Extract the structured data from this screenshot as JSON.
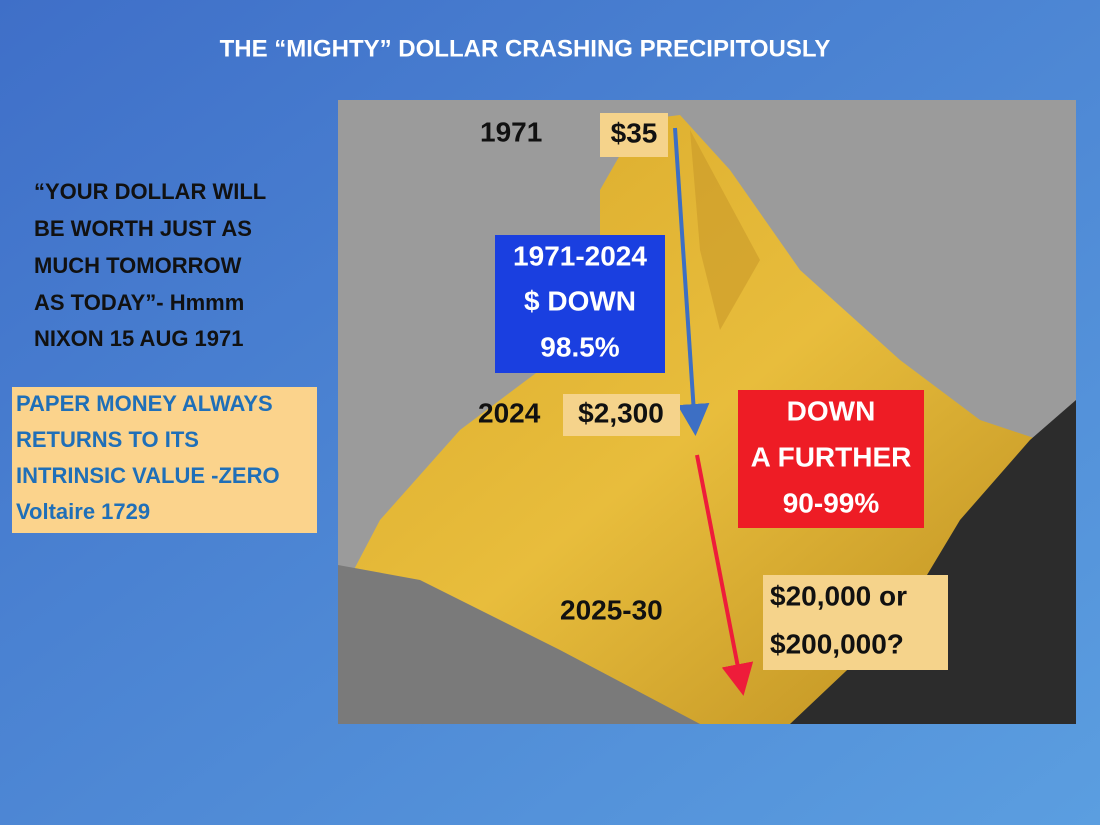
{
  "title": "THE “MIGHTY” DOLLAR CRASHING PRECIPITOUSLY",
  "quote": {
    "lines": [
      "“YOUR DOLLAR WILL",
      "BE WORTH JUST AS",
      "MUCH TOMORROW",
      "AS TODAY”- Hmmm",
      "NIXON 15 AUG 1971"
    ]
  },
  "note": {
    "lines": [
      "PAPER MONEY ALWAYS",
      "RETURNS TO ITS",
      "INTRINSIC VALUE -ZERO",
      "Voltaire 1729"
    ]
  },
  "image": {
    "start_year": "1971",
    "start_price": "$35",
    "blue_box": [
      "1971-2024",
      "$ DOWN",
      "98.5%"
    ],
    "mid_year": "2024",
    "mid_price": "$2,300",
    "red_box": [
      "DOWN",
      "A FURTHER",
      "90-99%"
    ],
    "end_year": "2025-30",
    "end_price": [
      "$20,000 or",
      "$200,000?"
    ]
  }
}
